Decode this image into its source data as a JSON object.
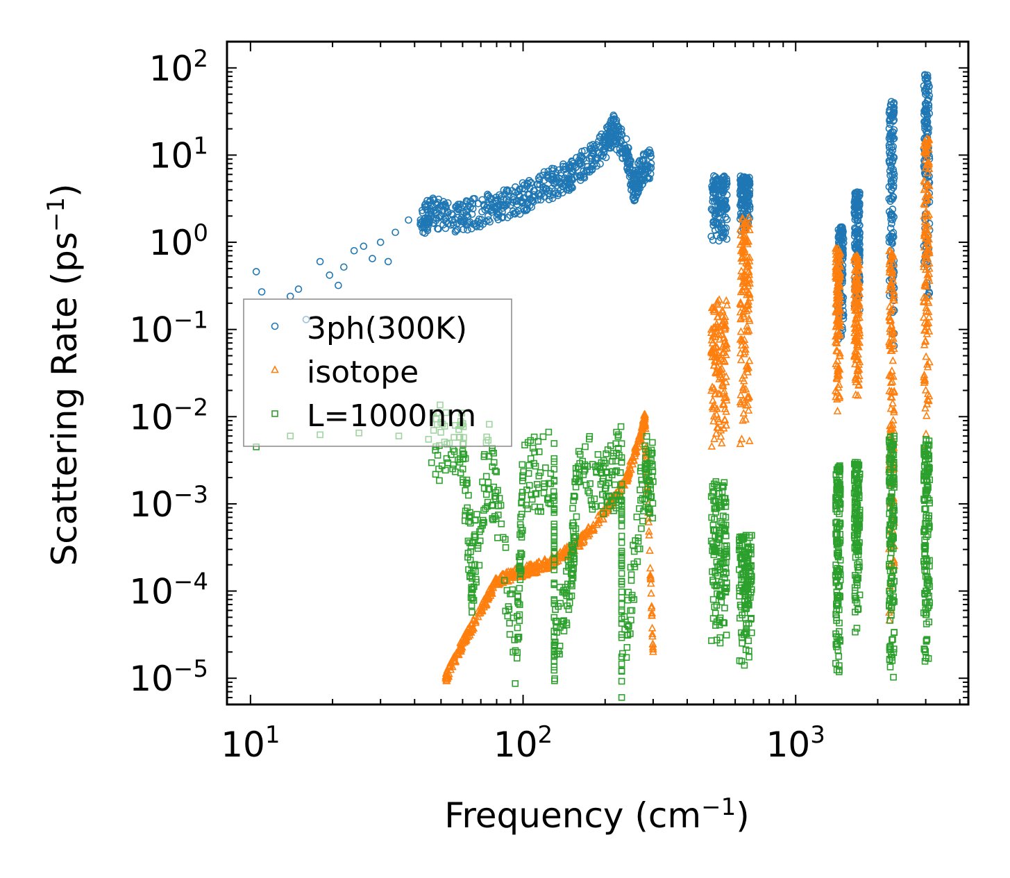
{
  "chart_data": {
    "type": "scatter",
    "title": "",
    "xlabel": {
      "main": "Frequency (cm",
      "sup": "−1",
      "tail": ")"
    },
    "ylabel": {
      "main": "Scattering Rate (ps",
      "sup": "−1",
      "tail": ")"
    },
    "xscale": "log",
    "yscale": "log",
    "xlim": [
      8.2,
      4300
    ],
    "ylim": [
      5e-06,
      200
    ],
    "xticks": [
      {
        "base": "10",
        "exp": "1"
      },
      {
        "base": "10",
        "exp": "2"
      },
      {
        "base": "10",
        "exp": "3"
      }
    ],
    "yticks": [
      {
        "base": "10",
        "exp": "−5"
      },
      {
        "base": "10",
        "exp": "−4"
      },
      {
        "base": "10",
        "exp": "−3"
      },
      {
        "base": "10",
        "exp": "−2"
      },
      {
        "base": "10",
        "exp": "−1"
      },
      {
        "base": "10",
        "exp": "0"
      },
      {
        "base": "10",
        "exp": "1"
      },
      {
        "base": "10",
        "exp": "2"
      }
    ],
    "legend_position": "center-left",
    "series": [
      {
        "name": "3ph(300K)",
        "marker": "circle",
        "color": "#1f77b4",
        "points": [
          [
            10.5,
            0.46
          ],
          [
            11.0,
            0.27
          ],
          [
            14.0,
            0.24
          ],
          [
            15.0,
            0.29
          ],
          [
            16.0,
            0.13
          ],
          [
            18.0,
            0.6
          ],
          [
            19.5,
            0.42
          ],
          [
            21.0,
            0.32
          ],
          [
            22.0,
            0.52
          ],
          [
            24.0,
            0.8
          ],
          [
            26.0,
            0.9
          ],
          [
            28.0,
            0.65
          ],
          [
            30.0,
            1.0
          ],
          [
            32.0,
            0.6
          ],
          [
            34.0,
            1.3
          ],
          [
            38.0,
            1.8
          ],
          [
            42.0,
            1.6
          ],
          [
            46.0,
            2.3
          ],
          [
            55.0,
            1.8
          ],
          [
            65.0,
            2.1
          ],
          [
            80.0,
            2.6
          ],
          [
            95.0,
            3.0
          ],
          [
            110.0,
            3.9
          ],
          [
            130.0,
            4.8
          ],
          [
            150.0,
            6.0
          ],
          [
            175.0,
            9.2
          ],
          [
            200.0,
            13.0
          ],
          [
            215.0,
            20.0
          ],
          [
            240.0,
            10.5
          ],
          [
            255.0,
            4.2
          ],
          [
            270.0,
            6.5
          ],
          [
            295.0,
            8.0
          ]
        ],
        "clusters": [
          {
            "x": [
              490,
              560
            ],
            "y": [
              1.0,
              5.8
            ]
          },
          {
            "x": [
              625,
              680
            ],
            "y": [
              1.3,
              5.8
            ]
          },
          {
            "x": [
              1430,
              1500
            ],
            "y": [
              0.07,
              1.5
            ]
          },
          {
            "x": [
              1640,
              1720
            ],
            "y": [
              0.15,
              3.8
            ]
          },
          {
            "x": [
              2200,
              2300
            ],
            "y": [
              0.05,
              45.0
            ]
          },
          {
            "x": [
              2950,
              3100
            ],
            "y": [
              0.2,
              85.0
            ]
          }
        ]
      },
      {
        "name": "isotope",
        "marker": "triangle",
        "color": "#ff7f0e",
        "points": [
          [
            52.0,
            1e-05
          ],
          [
            60.0,
            2.5e-05
          ],
          [
            70.0,
            6e-05
          ],
          [
            80.0,
            0.00013
          ],
          [
            95.0,
            0.00016
          ],
          [
            110.0,
            0.00018
          ],
          [
            130.0,
            0.00022
          ],
          [
            160.0,
            0.00035
          ],
          [
            200.0,
            0.0008
          ],
          [
            240.0,
            0.002
          ],
          [
            270.0,
            0.006
          ],
          [
            280.0,
            0.01
          ],
          [
            300.0,
            2e-05
          ]
        ],
        "clusters": [
          {
            "x": [
              490,
              560
            ],
            "y": [
              0.004,
              0.22
            ]
          },
          {
            "x": [
              625,
              680
            ],
            "y": [
              0.004,
              2.0
            ]
          },
          {
            "x": [
              1400,
              1460
            ],
            "y": [
              0.01,
              0.85
            ]
          },
          {
            "x": [
              1640,
              1720
            ],
            "y": [
              0.015,
              0.7
            ]
          },
          {
            "x": [
              2200,
              2300
            ],
            "y": [
              4e-05,
              0.8
            ]
          },
          {
            "x": [
              2950,
              3100
            ],
            "y": [
              0.003,
              16.0
            ]
          }
        ]
      },
      {
        "name": "L=1000nm",
        "marker": "square",
        "color": "#2ca02c",
        "points": [
          [
            10.5,
            0.0045
          ],
          [
            14.0,
            0.006
          ],
          [
            18.0,
            0.0062
          ],
          [
            25.0,
            0.0065
          ],
          [
            35.0,
            0.006
          ],
          [
            45.0,
            0.0055
          ],
          [
            60.0,
            0.004
          ],
          [
            75.0,
            0.0035
          ],
          [
            100.0,
            0.002
          ],
          [
            130.0,
            0.0025
          ],
          [
            160.0,
            0.004
          ],
          [
            200.0,
            0.0015
          ],
          [
            230.0,
            0.003
          ],
          [
            280.0,
            0.0025
          ],
          [
            300.0,
            0.0018
          ],
          [
            95.0,
            1.7e-05
          ],
          [
            130.0,
            2e-05
          ],
          [
            150.0,
            0.00016
          ],
          [
            230.0,
            1.2e-05
          ],
          [
            65.0,
            0.00014
          ]
        ],
        "clusters": [
          {
            "x": [
              490,
              560
            ],
            "y": [
              1.8e-05,
              0.0018
            ]
          },
          {
            "x": [
              620,
              690
            ],
            "y": [
              1e-05,
              0.00045
            ]
          },
          {
            "x": [
              1400,
              1460
            ],
            "y": [
              1e-05,
              0.0028
            ]
          },
          {
            "x": [
              1640,
              1720
            ],
            "y": [
              2.5e-05,
              0.003
            ]
          },
          {
            "x": [
              2200,
              2300
            ],
            "y": [
              1e-05,
              0.006
            ]
          },
          {
            "x": [
              2950,
              3100
            ],
            "y": [
              1e-05,
              0.0058
            ]
          }
        ]
      }
    ]
  }
}
